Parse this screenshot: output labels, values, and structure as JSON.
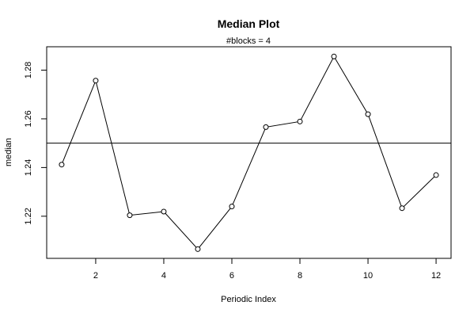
{
  "chart_data": {
    "type": "line",
    "title": "Median Plot",
    "subtitle": "#blocks =  4",
    "xlabel": "Periodic Index",
    "ylabel": "median",
    "x": [
      1,
      2,
      3,
      4,
      5,
      6,
      7,
      8,
      9,
      10,
      11,
      12
    ],
    "series": [
      {
        "values": [
          1.2412,
          1.2757,
          1.2204,
          1.2219,
          1.2065,
          1.224,
          1.2566,
          1.2589,
          1.2856,
          1.2619,
          1.2233,
          1.2369
        ]
      }
    ],
    "reference_line": 1.25,
    "xlim": [
      0.56,
      12.44
    ],
    "ylim": [
      1.2027,
      1.2896
    ],
    "xticks": [
      "2",
      "4",
      "6",
      "8",
      "10",
      "12"
    ],
    "yticks": [
      "1.22",
      "1.24",
      "1.26",
      "1.28"
    ],
    "grid": false,
    "legend": "none",
    "marker": "open-circle",
    "line_color": "#000000"
  }
}
